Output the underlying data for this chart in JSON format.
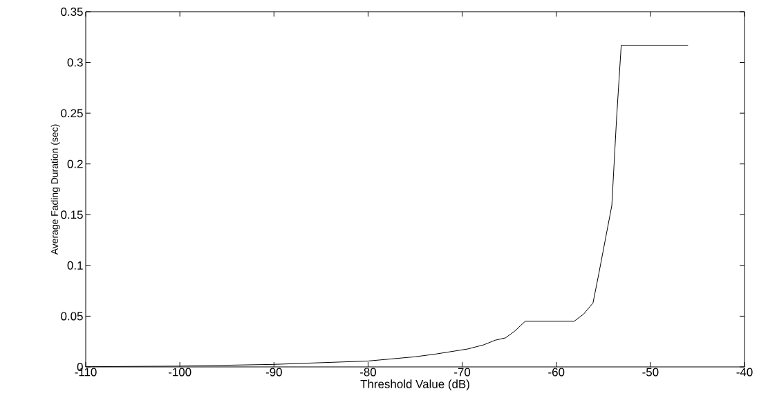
{
  "chart_data": {
    "type": "line",
    "xlabel": "Threshold Value (dB)",
    "ylabel": "Average Fading Duration (sec)",
    "xlim": [
      -110,
      -40
    ],
    "ylim": [
      0,
      0.35
    ],
    "xticks": [
      -110,
      -100,
      -90,
      -80,
      -70,
      -60,
      -50,
      -40
    ],
    "yticks": [
      0,
      0.05,
      0.1,
      0.15,
      0.2,
      0.25,
      0.3,
      0.35
    ],
    "marker": "none",
    "line_style": "solid",
    "series": [
      {
        "color": "#000000",
        "x": [
          -110,
          -100,
          -90,
          -80,
          -75,
          -72.8,
          -69.4,
          -67.7,
          -66.5,
          -65.4,
          -64.4,
          -63.3,
          -58.1,
          -57.1,
          -56.1,
          -55.5,
          -54.1,
          -53.6,
          -53.1,
          -46
        ],
        "values": [
          0.0002,
          0.0008,
          0.0025,
          0.0058,
          0.01,
          0.0127,
          0.0177,
          0.0218,
          0.0263,
          0.0286,
          0.0354,
          0.045,
          0.045,
          0.052,
          0.063,
          0.091,
          0.159,
          0.244,
          0.317,
          0.317
        ]
      }
    ]
  }
}
